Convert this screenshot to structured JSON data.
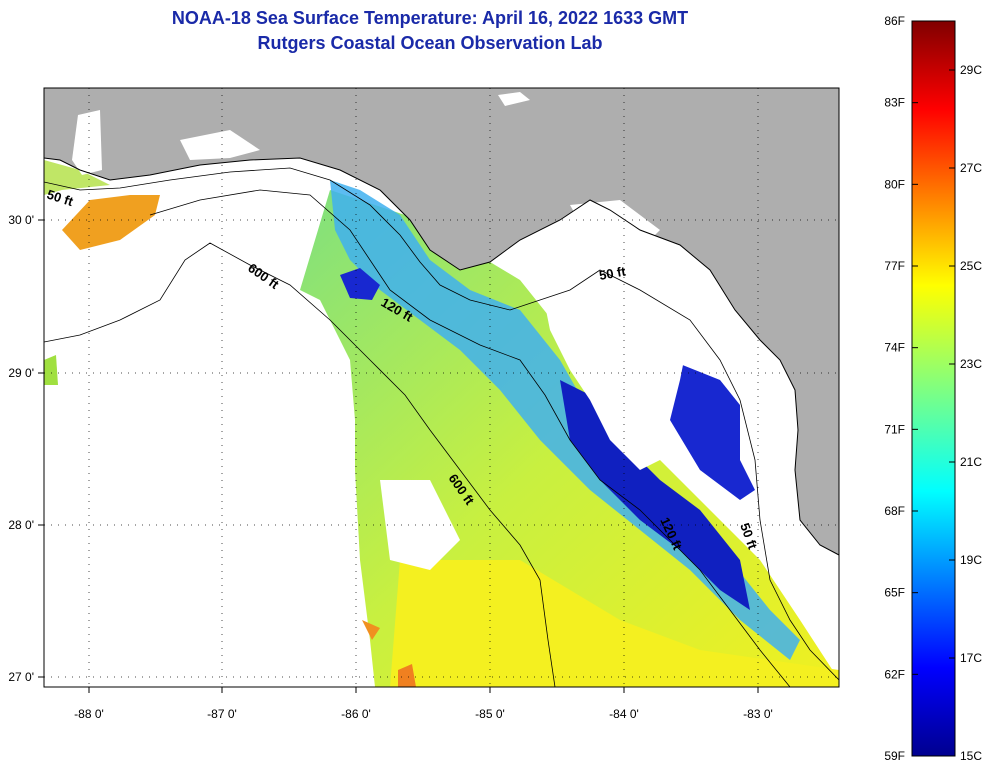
{
  "title": {
    "line1": "NOAA-18 Sea Surface Temperature:  April 16, 2022 1633 GMT",
    "line2": "Rutgers Coastal Ocean Observation Lab"
  },
  "map": {
    "lon_ticks": [
      {
        "value": -88,
        "label": "-88 0'"
      },
      {
        "value": -87,
        "label": "-87 0'"
      },
      {
        "value": -86,
        "label": "-86 0'"
      },
      {
        "value": -85,
        "label": "-85 0'"
      },
      {
        "value": -84,
        "label": "-84 0'"
      },
      {
        "value": -83,
        "label": "-83 0'"
      }
    ],
    "lat_ticks": [
      {
        "value": 30,
        "label": "30 0'"
      },
      {
        "value": 29,
        "label": "29 0'"
      },
      {
        "value": 28,
        "label": "28 0'"
      },
      {
        "value": 27,
        "label": "27 0'"
      }
    ],
    "contour_labels": [
      "50 ft",
      "600 ft",
      "120 ft",
      "600 ft",
      "50 ft",
      "120 ft",
      "50 ft"
    ],
    "colors": {
      "land": "#aeaeae",
      "cloud": "#ffffff",
      "grid": "#000000"
    }
  },
  "colorbar": {
    "fahrenheit": [
      "86F",
      "83F",
      "80F",
      "77F",
      "74F",
      "71F",
      "68F",
      "65F",
      "62F",
      "59F"
    ],
    "celsius": [
      "29C",
      "27C",
      "25C",
      "23C",
      "21C",
      "19C",
      "17C",
      "15C"
    ],
    "colors": [
      "#00008f",
      "#0000ff",
      "#0080ff",
      "#00ffff",
      "#80ff80",
      "#ffff00",
      "#ff8000",
      "#ff0000",
      "#800000"
    ]
  }
}
